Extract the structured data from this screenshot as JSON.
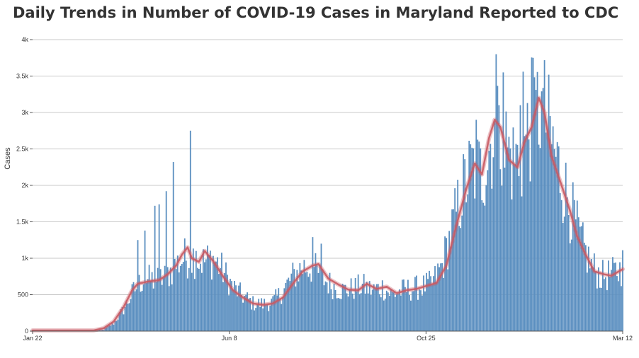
{
  "title": "Daily Trends in Number of COVID-19 Cases in Maryland Reported to CDC",
  "colors": {
    "bar": "#5b8fc0",
    "avg": "#c95a63",
    "grid": "#c8c8c8",
    "axis": "#555555",
    "text": "#333333"
  },
  "chart_data": {
    "type": "bar",
    "title": "Daily Trends in Number of COVID-19 Cases in Maryland Reported to CDC",
    "xlabel": "",
    "ylabel": "Cases",
    "x_start": "2020-01-22",
    "x_end": "2021-03-12",
    "ylim": [
      0,
      4000
    ],
    "grid": true,
    "x_tick_labels": [
      "Jan 22",
      "Jun 8",
      "Oct 25",
      "Mar 12"
    ],
    "y_tick_labels": [
      "0",
      "500",
      "1k",
      "1.5k",
      "2k",
      "2.5k",
      "3k",
      "3.5k",
      "4k"
    ],
    "series": [
      {
        "type": "bar",
        "keyframes": [
          [
            "2020-01-22",
            0
          ],
          [
            "2020-03-05",
            0
          ],
          [
            "2020-03-12",
            20
          ],
          [
            "2020-03-19",
            110
          ],
          [
            "2020-03-26",
            300
          ],
          [
            "2020-04-02",
            550
          ],
          [
            "2020-04-09",
            720
          ],
          [
            "2020-04-16",
            700
          ],
          [
            "2020-04-23",
            720
          ],
          [
            "2020-04-30",
            870
          ],
          [
            "2020-05-07",
            1000
          ],
          [
            "2020-05-14",
            1030
          ],
          [
            "2020-05-21",
            950
          ],
          [
            "2020-05-28",
            1000
          ],
          [
            "2020-06-04",
            820
          ],
          [
            "2020-06-11",
            600
          ],
          [
            "2020-06-18",
            480
          ],
          [
            "2020-06-25",
            380
          ],
          [
            "2020-07-02",
            370
          ],
          [
            "2020-07-09",
            400
          ],
          [
            "2020-07-16",
            550
          ],
          [
            "2020-07-23",
            750
          ],
          [
            "2020-07-30",
            880
          ],
          [
            "2020-08-06",
            880
          ],
          [
            "2020-08-13",
            720
          ],
          [
            "2020-08-20",
            620
          ],
          [
            "2020-08-27",
            560
          ],
          [
            "2020-09-03",
            580
          ],
          [
            "2020-09-10",
            620
          ],
          [
            "2020-09-17",
            560
          ],
          [
            "2020-09-24",
            600
          ],
          [
            "2020-10-01",
            500
          ],
          [
            "2020-10-08",
            560
          ],
          [
            "2020-10-15",
            580
          ],
          [
            "2020-10-22",
            610
          ],
          [
            "2020-10-29",
            650
          ],
          [
            "2020-11-05",
            900
          ],
          [
            "2020-11-12",
            1400
          ],
          [
            "2020-11-19",
            1900
          ],
          [
            "2020-11-26",
            2250
          ],
          [
            "2020-12-03",
            2150
          ],
          [
            "2020-12-10",
            2650
          ],
          [
            "2020-12-17",
            2750
          ],
          [
            "2020-12-24",
            2350
          ],
          [
            "2020-12-31",
            2400
          ],
          [
            "2021-01-07",
            2900
          ],
          [
            "2021-01-14",
            3100
          ],
          [
            "2021-01-21",
            2600
          ],
          [
            "2021-01-28",
            2100
          ],
          [
            "2021-02-04",
            1650
          ],
          [
            "2021-02-11",
            1200
          ],
          [
            "2021-02-18",
            900
          ],
          [
            "2021-02-25",
            750
          ],
          [
            "2021-03-04",
            780
          ],
          [
            "2021-03-12",
            850
          ]
        ],
        "spikes": [
          [
            "2020-04-05",
            1250
          ],
          [
            "2020-04-10",
            1380
          ],
          [
            "2020-04-17",
            1720
          ],
          [
            "2020-04-20",
            1740
          ],
          [
            "2020-04-25",
            1920
          ],
          [
            "2020-04-30",
            2320
          ],
          [
            "2020-05-12",
            2750
          ],
          [
            "2020-05-16",
            1100
          ],
          [
            "2020-08-06",
            1290
          ],
          [
            "2020-08-12",
            1200
          ],
          [
            "2020-11-29",
            2900
          ],
          [
            "2020-12-13",
            3800
          ],
          [
            "2020-12-15",
            3100
          ],
          [
            "2020-12-18",
            3550
          ],
          [
            "2020-12-30",
            3100
          ],
          [
            "2021-01-01",
            3560
          ],
          [
            "2021-01-08",
            3750
          ],
          [
            "2021-01-10",
            3310
          ],
          [
            "2021-01-14",
            3290
          ],
          [
            "2021-03-12",
            1110
          ]
        ]
      },
      {
        "type": "line",
        "points": [
          [
            "2020-01-22",
            10
          ],
          [
            "2020-03-05",
            10
          ],
          [
            "2020-03-12",
            40
          ],
          [
            "2020-03-19",
            130
          ],
          [
            "2020-03-26",
            330
          ],
          [
            "2020-04-01",
            560
          ],
          [
            "2020-04-05",
            650
          ],
          [
            "2020-04-12",
            680
          ],
          [
            "2020-04-20",
            700
          ],
          [
            "2020-04-26",
            780
          ],
          [
            "2020-05-02",
            900
          ],
          [
            "2020-05-06",
            1050
          ],
          [
            "2020-05-10",
            1150
          ],
          [
            "2020-05-13",
            1000
          ],
          [
            "2020-05-18",
            950
          ],
          [
            "2020-05-22",
            1100
          ],
          [
            "2020-05-28",
            960
          ],
          [
            "2020-06-04",
            750
          ],
          [
            "2020-06-11",
            560
          ],
          [
            "2020-06-18",
            460
          ],
          [
            "2020-06-25",
            380
          ],
          [
            "2020-07-02",
            360
          ],
          [
            "2020-07-09",
            380
          ],
          [
            "2020-07-16",
            460
          ],
          [
            "2020-07-23",
            650
          ],
          [
            "2020-07-30",
            820
          ],
          [
            "2020-08-06",
            900
          ],
          [
            "2020-08-10",
            920
          ],
          [
            "2020-08-17",
            720
          ],
          [
            "2020-08-24",
            640
          ],
          [
            "2020-08-31",
            570
          ],
          [
            "2020-09-07",
            560
          ],
          [
            "2020-09-13",
            650
          ],
          [
            "2020-09-20",
            580
          ],
          [
            "2020-09-27",
            610
          ],
          [
            "2020-10-04",
            520
          ],
          [
            "2020-10-11",
            560
          ],
          [
            "2020-10-18",
            580
          ],
          [
            "2020-10-25",
            620
          ],
          [
            "2020-11-01",
            660
          ],
          [
            "2020-11-08",
            900
          ],
          [
            "2020-11-15",
            1450
          ],
          [
            "2020-11-22",
            1950
          ],
          [
            "2020-11-28",
            2300
          ],
          [
            "2020-12-03",
            2150
          ],
          [
            "2020-12-08",
            2650
          ],
          [
            "2020-12-12",
            2900
          ],
          [
            "2020-12-16",
            2800
          ],
          [
            "2020-12-22",
            2350
          ],
          [
            "2020-12-28",
            2250
          ],
          [
            "2021-01-02",
            2600
          ],
          [
            "2021-01-07",
            2800
          ],
          [
            "2021-01-12",
            3200
          ],
          [
            "2021-01-16",
            3000
          ],
          [
            "2021-01-21",
            2400
          ],
          [
            "2021-01-28",
            2000
          ],
          [
            "2021-02-03",
            1650
          ],
          [
            "2021-02-08",
            1300
          ],
          [
            "2021-02-14",
            1050
          ],
          [
            "2021-02-20",
            820
          ],
          [
            "2021-02-27",
            780
          ],
          [
            "2021-03-04",
            760
          ],
          [
            "2021-03-12",
            850
          ]
        ]
      }
    ]
  }
}
